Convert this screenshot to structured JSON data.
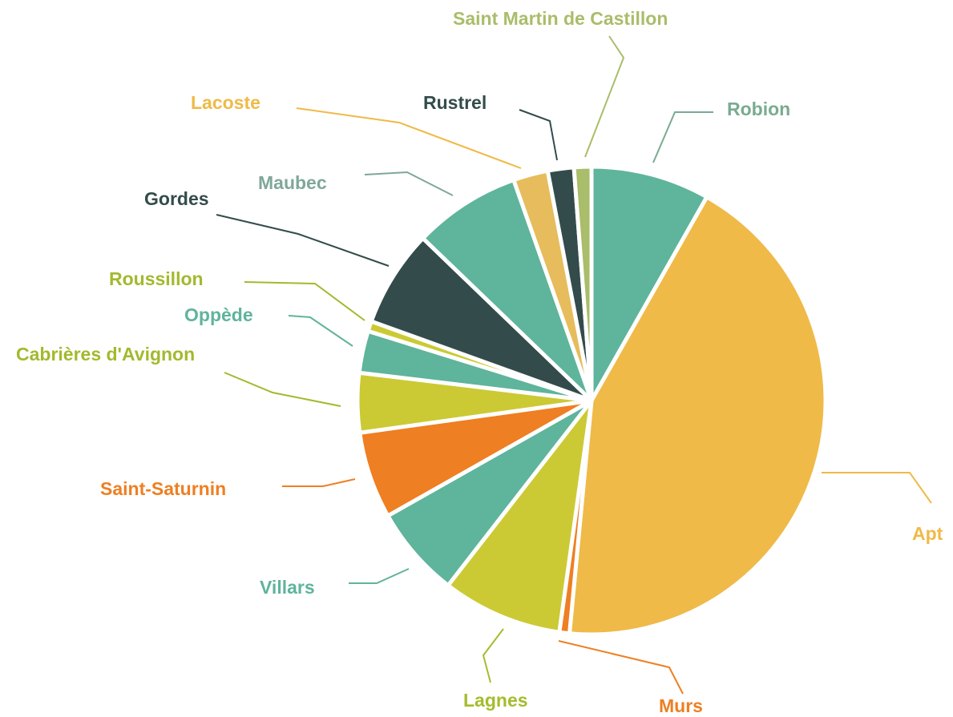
{
  "chart_data": {
    "type": "pie",
    "categories": [
      "Robion",
      "Apt",
      "Murs",
      "Lagnes",
      "Villars",
      "Saint-Saturnin",
      "Cabrières d'Avignon",
      "Oppède",
      "Roussillon",
      "Gordes",
      "Maubec",
      "Lacoste",
      "Rustrel",
      "Saint Martin de Castillon"
    ],
    "values": [
      8.2,
      43.3,
      0.7,
      8.3,
      6.3,
      6.0,
      4.1,
      2.9,
      0.7,
      6.7,
      7.4,
      2.4,
      1.8,
      1.2
    ],
    "colors": [
      "#5fb49c",
      "#efba48",
      "#ee7f22",
      "#cbca34",
      "#5fb49c",
      "#ee7f22",
      "#cbca34",
      "#5fb49c",
      "#cbca34",
      "#334b4b",
      "#5fb49c",
      "#e6bc5c",
      "#334b4b",
      "#a9bd6a"
    ],
    "label_colors": [
      "#79ab91",
      "#efba48",
      "#ee7f22",
      "#a4bd2c",
      "#5fb49c",
      "#ee7f22",
      "#a3b92e",
      "#5fb49c",
      "#a3b92e",
      "#334b4b",
      "#7fa79a",
      "#efba48",
      "#334b4b",
      "#a9bd6a"
    ]
  }
}
